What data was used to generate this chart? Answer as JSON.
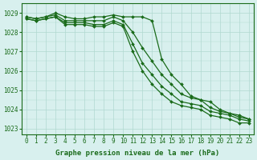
{
  "x": [
    0,
    1,
    2,
    3,
    4,
    5,
    6,
    7,
    8,
    9,
    10,
    11,
    12,
    13,
    14,
    15,
    16,
    17,
    18,
    19,
    20,
    21,
    22,
    23
  ],
  "series": [
    [
      1028.8,
      1028.7,
      1028.8,
      1029.0,
      1028.8,
      1028.7,
      1028.7,
      1028.8,
      1028.8,
      1028.9,
      1028.8,
      1028.8,
      1028.8,
      1028.6,
      1026.6,
      1025.8,
      1025.3,
      1024.7,
      1024.5,
      1024.4,
      1024.0,
      1023.8,
      1023.7,
      1023.5
    ],
    [
      1028.8,
      1028.7,
      1028.8,
      1028.9,
      1028.6,
      1028.6,
      1028.6,
      1028.6,
      1028.6,
      1028.8,
      1028.6,
      1028.0,
      1027.2,
      1026.5,
      1025.8,
      1025.3,
      1024.8,
      1024.6,
      1024.5,
      1024.1,
      1023.9,
      1023.8,
      1023.6,
      1023.5
    ],
    [
      1028.7,
      1028.6,
      1028.7,
      1028.8,
      1028.5,
      1028.5,
      1028.5,
      1028.4,
      1028.4,
      1028.6,
      1028.4,
      1027.4,
      1026.4,
      1025.8,
      1025.2,
      1024.8,
      1024.4,
      1024.3,
      1024.2,
      1023.9,
      1023.8,
      1023.7,
      1023.5,
      1023.4
    ],
    [
      1028.7,
      1028.6,
      1028.7,
      1028.8,
      1028.4,
      1028.4,
      1028.4,
      1028.3,
      1028.3,
      1028.5,
      1028.3,
      1027.0,
      1026.0,
      1025.3,
      1024.8,
      1024.4,
      1024.2,
      1024.1,
      1024.0,
      1023.7,
      1023.6,
      1023.5,
      1023.3,
      1023.3
    ]
  ],
  "ylim_min": 1022.7,
  "ylim_max": 1029.5,
  "yticks": [
    1023,
    1024,
    1025,
    1026,
    1027,
    1028,
    1029
  ],
  "xticks": [
    0,
    1,
    2,
    3,
    4,
    5,
    6,
    7,
    8,
    9,
    10,
    11,
    12,
    13,
    14,
    15,
    16,
    17,
    18,
    19,
    20,
    21,
    22,
    23
  ],
  "line_color": "#1a6b1a",
  "marker": "D",
  "marker_size": 2.0,
  "bg_color": "#d8f0ee",
  "grid_color": "#b0d8d0",
  "xlabel": "Graphe pression niveau de la mer (hPa)",
  "xlabel_color": "#1a6b1a",
  "xlabel_fontsize": 6.5,
  "tick_color": "#1a6b1a",
  "tick_fontsize": 5.5,
  "linewidth": 0.9
}
